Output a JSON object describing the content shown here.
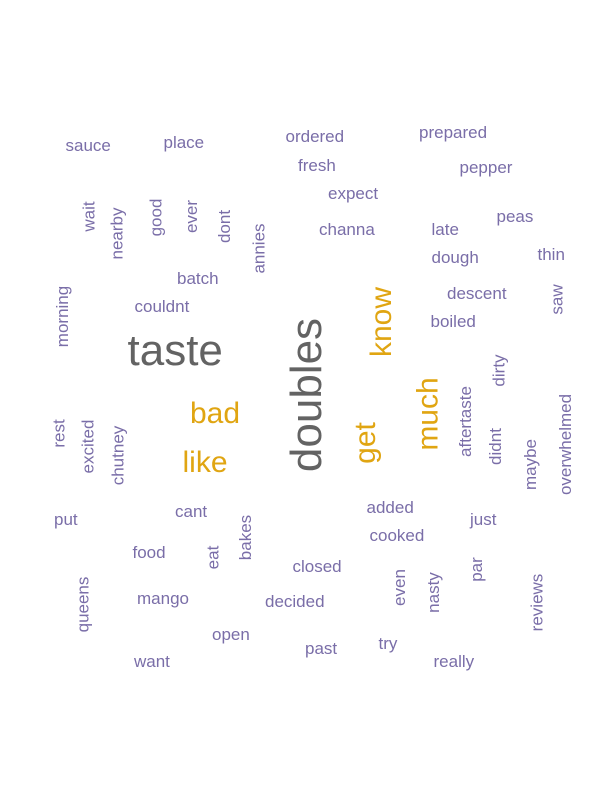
{
  "colors": {
    "purple": "#7a6ea8",
    "gold": "#e0a512",
    "gray": "#636363"
  },
  "words": [
    {
      "id": "sauce",
      "text": "sauce",
      "color": "purple"
    },
    {
      "id": "place",
      "text": "place",
      "color": "purple"
    },
    {
      "id": "ordered",
      "text": "ordered",
      "color": "purple"
    },
    {
      "id": "prepared",
      "text": "prepared",
      "color": "purple"
    },
    {
      "id": "fresh",
      "text": "fresh",
      "color": "purple"
    },
    {
      "id": "pepper",
      "text": "pepper",
      "color": "purple"
    },
    {
      "id": "expect",
      "text": "expect",
      "color": "purple"
    },
    {
      "id": "wait",
      "text": "wait",
      "color": "purple"
    },
    {
      "id": "nearby",
      "text": "nearby",
      "color": "purple"
    },
    {
      "id": "good",
      "text": "good",
      "color": "purple"
    },
    {
      "id": "ever",
      "text": "ever",
      "color": "purple"
    },
    {
      "id": "dont",
      "text": "dont",
      "color": "purple"
    },
    {
      "id": "annies",
      "text": "annies",
      "color": "purple"
    },
    {
      "id": "channa",
      "text": "channa",
      "color": "purple"
    },
    {
      "id": "late",
      "text": "late",
      "color": "purple"
    },
    {
      "id": "peas",
      "text": "peas",
      "color": "purple"
    },
    {
      "id": "dough",
      "text": "dough",
      "color": "purple"
    },
    {
      "id": "thin",
      "text": "thin",
      "color": "purple"
    },
    {
      "id": "batch",
      "text": "batch",
      "color": "purple"
    },
    {
      "id": "morning",
      "text": "morning",
      "color": "purple"
    },
    {
      "id": "couldnt",
      "text": "couldnt",
      "color": "purple"
    },
    {
      "id": "descent",
      "text": "descent",
      "color": "purple"
    },
    {
      "id": "saw",
      "text": "saw",
      "color": "purple"
    },
    {
      "id": "boiled",
      "text": "boiled",
      "color": "purple"
    },
    {
      "id": "taste",
      "text": "taste",
      "color": "gray"
    },
    {
      "id": "doubles",
      "text": "doubles",
      "color": "gray"
    },
    {
      "id": "know",
      "text": "know",
      "color": "gold"
    },
    {
      "id": "dirty",
      "text": "dirty",
      "color": "purple"
    },
    {
      "id": "much",
      "text": "much",
      "color": "gold"
    },
    {
      "id": "aftertaste",
      "text": "aftertaste",
      "color": "purple"
    },
    {
      "id": "overwhelmed",
      "text": "overwhelmed",
      "color": "purple"
    },
    {
      "id": "bad",
      "text": "bad",
      "color": "gold"
    },
    {
      "id": "rest",
      "text": "rest",
      "color": "purple"
    },
    {
      "id": "excited",
      "text": "excited",
      "color": "purple"
    },
    {
      "id": "chutney",
      "text": "chutney",
      "color": "purple"
    },
    {
      "id": "get",
      "text": "get",
      "color": "gold"
    },
    {
      "id": "didnt",
      "text": "didnt",
      "color": "purple"
    },
    {
      "id": "maybe",
      "text": "maybe",
      "color": "purple"
    },
    {
      "id": "like",
      "text": "like",
      "color": "gold"
    },
    {
      "id": "added",
      "text": "added",
      "color": "purple"
    },
    {
      "id": "cant",
      "text": "cant",
      "color": "purple"
    },
    {
      "id": "put",
      "text": "put",
      "color": "purple"
    },
    {
      "id": "just",
      "text": "just",
      "color": "purple"
    },
    {
      "id": "cooked",
      "text": "cooked",
      "color": "purple"
    },
    {
      "id": "bakes",
      "text": "bakes",
      "color": "purple"
    },
    {
      "id": "food",
      "text": "food",
      "color": "purple"
    },
    {
      "id": "eat",
      "text": "eat",
      "color": "purple"
    },
    {
      "id": "closed",
      "text": "closed",
      "color": "purple"
    },
    {
      "id": "par",
      "text": "par",
      "color": "purple"
    },
    {
      "id": "even",
      "text": "even",
      "color": "purple"
    },
    {
      "id": "nasty",
      "text": "nasty",
      "color": "purple"
    },
    {
      "id": "queens",
      "text": "queens",
      "color": "purple"
    },
    {
      "id": "mango",
      "text": "mango",
      "color": "purple"
    },
    {
      "id": "decided",
      "text": "decided",
      "color": "purple"
    },
    {
      "id": "reviews",
      "text": "reviews",
      "color": "purple"
    },
    {
      "id": "open",
      "text": "open",
      "color": "purple"
    },
    {
      "id": "past",
      "text": "past",
      "color": "purple"
    },
    {
      "id": "try",
      "text": "try",
      "color": "purple"
    },
    {
      "id": "want",
      "text": "want",
      "color": "purple"
    },
    {
      "id": "really",
      "text": "really",
      "color": "purple"
    }
  ]
}
